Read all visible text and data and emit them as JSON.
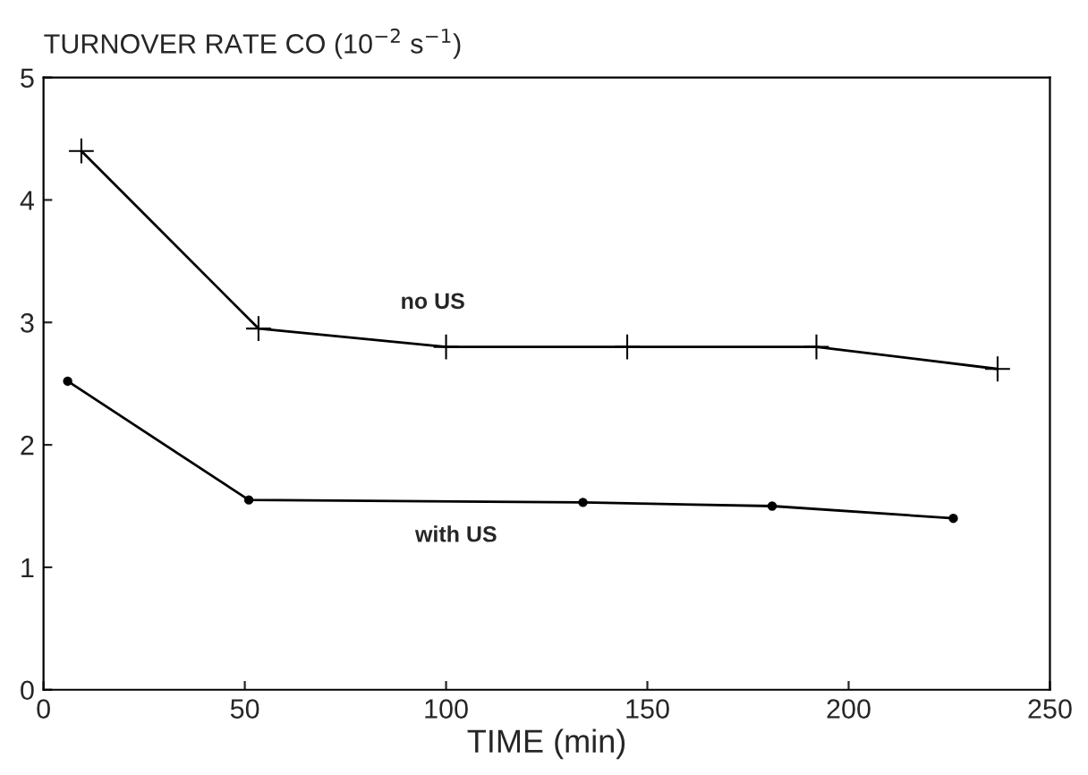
{
  "chart_data": {
    "type": "line",
    "ylabel": "TURNOVER RATE CO (10$^{−2}$ s$^{−1}$)",
    "xlabel": "TIME (min)",
    "series": [
      {
        "name": "no US",
        "color": "#000000",
        "marker": "cross",
        "x": [
          9.4,
          53.4,
          100,
          145,
          192,
          237
        ],
        "values": [
          4.4,
          2.95,
          2.8,
          2.8,
          2.8,
          2.62
        ]
      },
      {
        "name": "with US",
        "color": "#000000",
        "marker": "circle",
        "x": [
          6,
          51,
          134,
          181,
          226
        ],
        "values": [
          2.52,
          1.55,
          1.53,
          1.5,
          1.4
        ]
      }
    ],
    "xlim": [
      0,
      250
    ],
    "xticks": [
      0,
      50,
      100,
      150,
      200,
      250
    ],
    "ylim": [
      0,
      5
    ],
    "yticks": [
      0,
      1,
      2,
      3,
      4,
      5
    ],
    "grid": false,
    "legend": false
  }
}
